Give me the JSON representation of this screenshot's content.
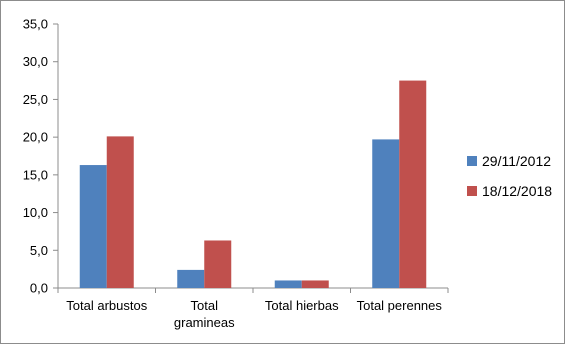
{
  "chart_data": {
    "type": "bar",
    "title": "",
    "xlabel": "",
    "ylabel": "",
    "categories": [
      [
        "Total arbustos"
      ],
      [
        "Total",
        "gramineas"
      ],
      [
        "Total hierbas"
      ],
      [
        "Total perennes"
      ]
    ],
    "series": [
      {
        "name": "29/11/2012",
        "color": "#4f81bd",
        "values": [
          16.3,
          2.4,
          1.0,
          19.7
        ]
      },
      {
        "name": "18/12/2018",
        "color": "#c0504d",
        "values": [
          20.1,
          6.3,
          1.0,
          27.5
        ]
      }
    ],
    "ylim": [
      0,
      35
    ],
    "yticks": [
      "0,0",
      "5,0",
      "10,0",
      "15,0",
      "20,0",
      "25,0",
      "30,0",
      "35,0"
    ],
    "grid": false,
    "legend_position": "right"
  }
}
